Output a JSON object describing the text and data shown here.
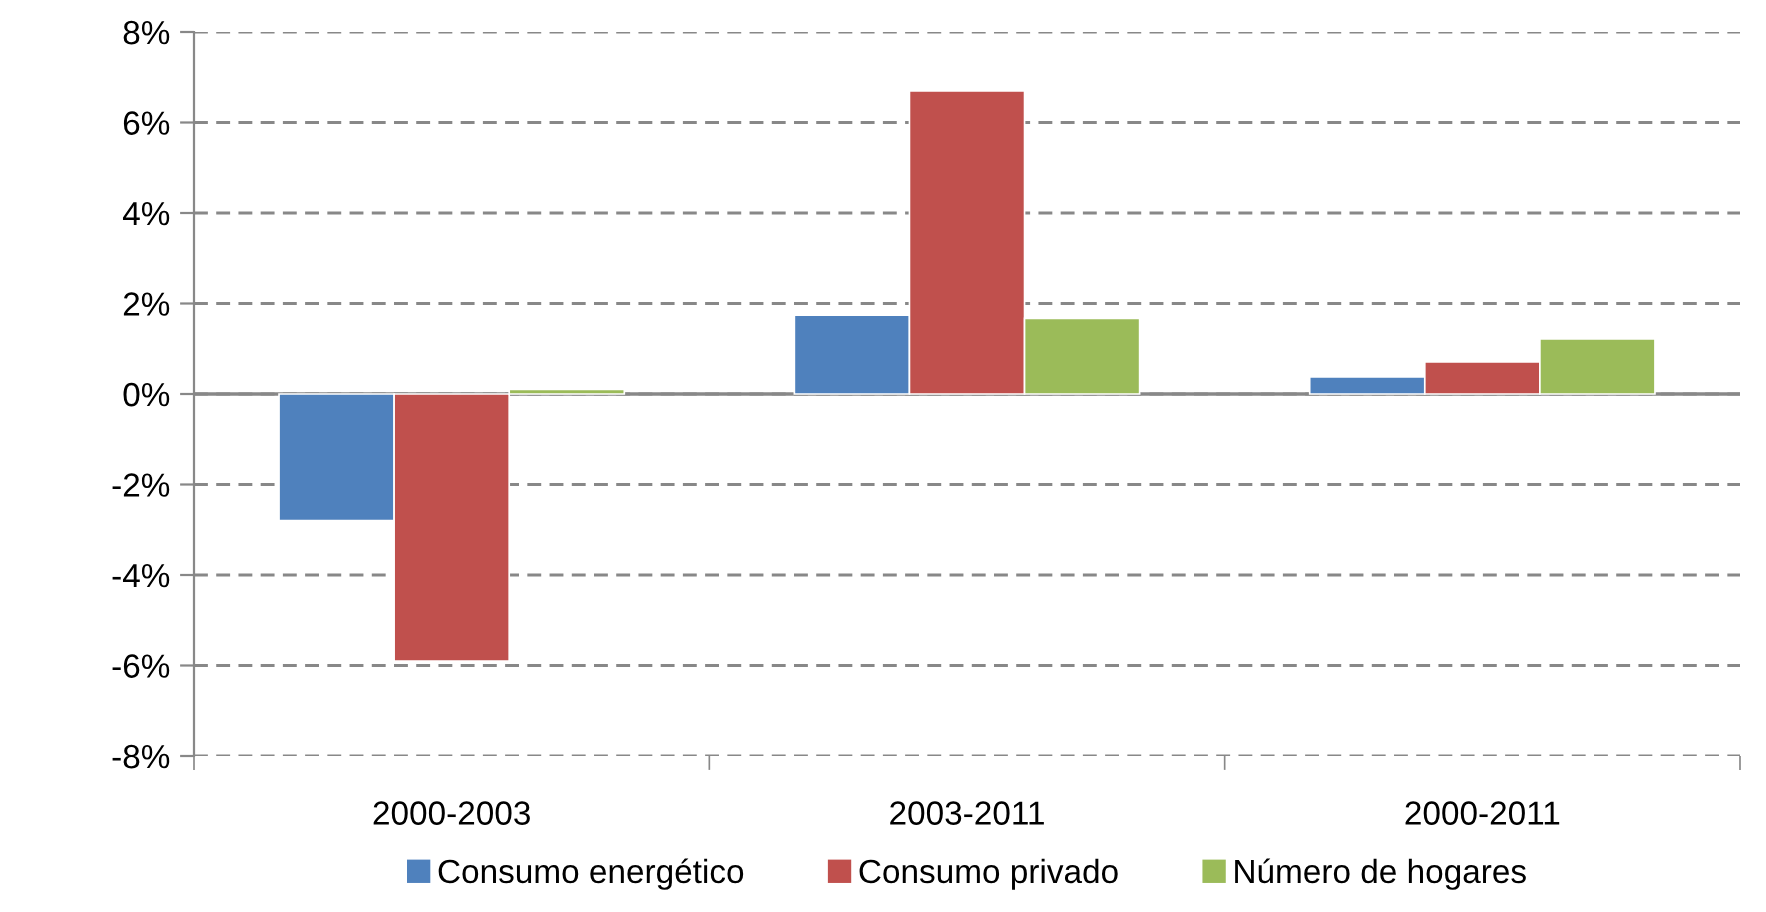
{
  "chart_data": {
    "type": "bar",
    "categories": [
      "2000-2003",
      "2003-2011",
      "2000-2011"
    ],
    "series": [
      {
        "name": "Consumo energético",
        "color": "#4f81bd",
        "values": [
          -2.8,
          1.74,
          0.38
        ]
      },
      {
        "name": "Consumo privado",
        "color": "#c0504d",
        "values": [
          -5.9,
          6.7,
          0.71
        ]
      },
      {
        "name": "Número de hogares",
        "color": "#9bbb59",
        "values": [
          0.1,
          1.67,
          1.22
        ]
      }
    ],
    "ylim": [
      -8,
      8
    ],
    "yticks": [
      {
        "value": -8,
        "label": "-8%"
      },
      {
        "value": -6,
        "label": "-6%"
      },
      {
        "value": -4,
        "label": "-4%"
      },
      {
        "value": -2,
        "label": "-2%"
      },
      {
        "value": 0,
        "label": "0%"
      },
      {
        "value": 2,
        "label": "2%"
      },
      {
        "value": 4,
        "label": "4%"
      },
      {
        "value": 6,
        "label": "6%"
      },
      {
        "value": 8,
        "label": "8%"
      }
    ],
    "grid": "y",
    "legend": "bottom"
  }
}
